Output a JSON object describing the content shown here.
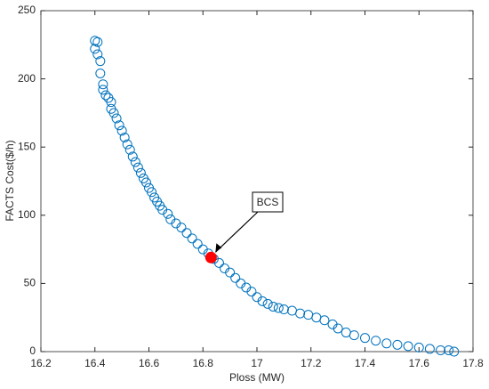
{
  "chart_data": {
    "type": "scatter",
    "x_label": "Ploss (MW)",
    "y_label": "FACTS Cost($/h)",
    "xlim": [
      16.2,
      17.8
    ],
    "ylim": [
      0,
      250
    ],
    "xticks": [
      16.2,
      16.4,
      16.6,
      16.8,
      17,
      17.2,
      17.4,
      17.6,
      17.8
    ],
    "yticks": [
      0,
      50,
      100,
      150,
      200,
      250
    ],
    "grid": false,
    "series": [
      {
        "color": "#0072bd",
        "x": [
          16.4,
          16.41,
          16.4,
          16.41,
          16.42,
          16.42,
          16.43,
          16.43,
          16.44,
          16.45,
          16.46,
          16.46,
          16.47,
          16.48,
          16.49,
          16.5,
          16.51,
          16.52,
          16.53,
          16.54,
          16.55,
          16.56,
          16.57,
          16.58,
          16.59,
          16.6,
          16.61,
          16.62,
          16.63,
          16.64,
          16.65,
          16.67,
          16.68,
          16.7,
          16.72,
          16.74,
          16.76,
          16.78,
          16.8,
          16.82,
          16.84,
          16.86,
          16.88,
          16.9,
          16.92,
          16.94,
          16.96,
          16.98,
          17.0,
          17.02,
          17.04,
          17.06,
          17.08,
          17.1,
          17.13,
          17.16,
          17.19,
          17.22,
          17.25,
          17.28,
          17.3,
          17.33,
          17.36,
          17.4,
          17.44,
          17.48,
          17.52,
          17.56,
          17.6,
          17.64,
          17.68,
          17.71,
          17.73
        ],
        "values": [
          228,
          227,
          222,
          218,
          213,
          204,
          196,
          192,
          188,
          186,
          183,
          178,
          175,
          171,
          166,
          162,
          157,
          152,
          148,
          143,
          139,
          135,
          131,
          127,
          124,
          120,
          117,
          113,
          110,
          107,
          104,
          101,
          97,
          94,
          91,
          87,
          83,
          79,
          75,
          72,
          68,
          65,
          61,
          58,
          54,
          50,
          47,
          44,
          40,
          37,
          35,
          33,
          32,
          31,
          30,
          28,
          27,
          25,
          23,
          20,
          17,
          14,
          12,
          10,
          8,
          6,
          5,
          4,
          3,
          2,
          1,
          1,
          0
        ]
      }
    ],
    "highlight": {
      "x": 16.83,
      "y": 69,
      "color": "#ff0000"
    },
    "annotation": {
      "text": "BCS"
    }
  }
}
